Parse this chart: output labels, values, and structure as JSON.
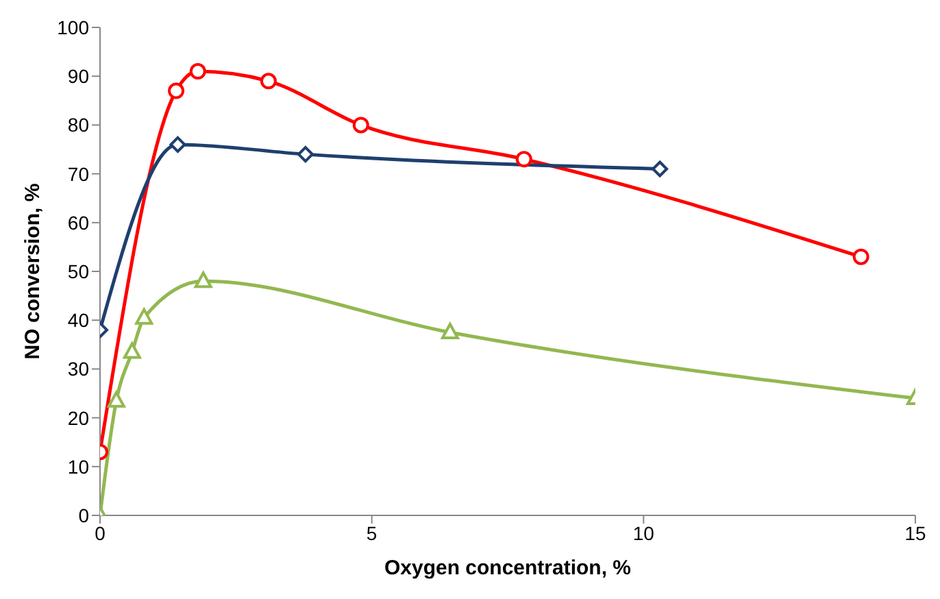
{
  "chart_data": {
    "type": "line",
    "xlabel": "Oxygen concentration, %",
    "ylabel": "NO conversion, %",
    "xlim": [
      0,
      15
    ],
    "xticks": [
      0,
      5,
      10,
      15
    ],
    "ylim": [
      0,
      100
    ],
    "yticks": [
      0,
      10,
      20,
      30,
      40,
      50,
      60,
      70,
      80,
      90,
      100
    ],
    "series": [
      {
        "color": "#ff0000",
        "marker": "circle",
        "x": [
          0,
          1.4,
          1.8,
          3.1,
          4.8,
          7.8,
          14
        ],
        "values": [
          13,
          87,
          91,
          89,
          80,
          73,
          53
        ]
      },
      {
        "color": "#1f3f6e",
        "marker": "diamond",
        "x": [
          0,
          1.43,
          3.78,
          10.3
        ],
        "values": [
          38,
          76,
          74,
          71
        ]
      },
      {
        "color": "#92b850",
        "marker": "triangle",
        "x": [
          0,
          0.3,
          0.59,
          0.81,
          1.9,
          6.44,
          15
        ],
        "values": [
          0,
          23.5,
          33.5,
          40.5,
          48,
          37.5,
          24
        ]
      }
    ]
  }
}
